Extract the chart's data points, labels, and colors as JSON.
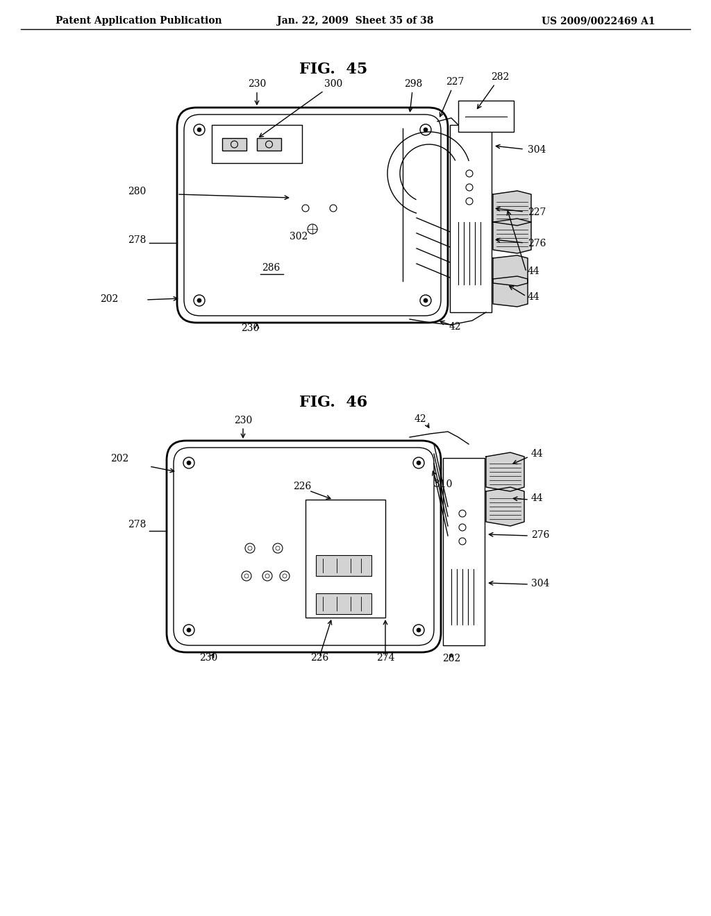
{
  "background_color": "#ffffff",
  "header_left": "Patent Application Publication",
  "header_center": "Jan. 22, 2009  Sheet 35 of 38",
  "header_right": "US 2009/0022469 A1",
  "fig45_title": "FIG.  45",
  "fig46_title": "FIG.  46"
}
